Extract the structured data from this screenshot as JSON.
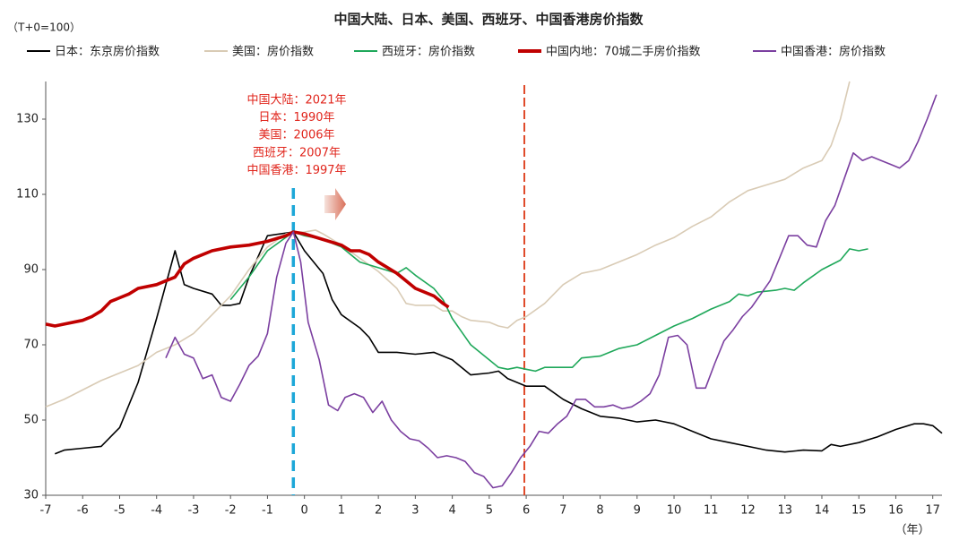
{
  "chart_data": {
    "type": "line",
    "title": "中国大陆、日本、美国、西班牙、中国香港房价指数",
    "y_label": "（T+0=100）",
    "x_label": "（年）",
    "annotation": [
      "中国大陆：2021年",
      "日本：1990年",
      "美国：2006年",
      "西班牙：2007年",
      "中国香港：1997年"
    ],
    "vlines": [
      {
        "x": -0.3,
        "color": "#1ca7d8"
      },
      {
        "x": 5.95,
        "color": "#e04a2a"
      }
    ],
    "xlim": [
      -7,
      17.25
    ],
    "xticks": [
      -7,
      -6,
      -5,
      -4,
      -3,
      -2,
      -1,
      0,
      1,
      2,
      3,
      4,
      5,
      6,
      7,
      8,
      9,
      10,
      11,
      12,
      13,
      14,
      15,
      16,
      17
    ],
    "ylim": [
      30,
      140
    ],
    "yticks": [
      30,
      50,
      70,
      90,
      110,
      130
    ],
    "grid": false,
    "legend": "top",
    "series": [
      {
        "name": "日本：东京房价指数",
        "color": "#000000",
        "width": 1.6,
        "x": [
          -6.75,
          -6.5,
          -6,
          -5.5,
          -5,
          -4.5,
          -4,
          -3.5,
          -3.25,
          -3,
          -2.5,
          -2.25,
          -2,
          -1.75,
          -1.5,
          -1,
          -0.3,
          0,
          0.5,
          0.75,
          1,
          1.5,
          1.75,
          2,
          2.5,
          3,
          3.5,
          4,
          4.5,
          5,
          5.25,
          5.5,
          6,
          6.5,
          7,
          7.5,
          8,
          8.5,
          9,
          9.5,
          10,
          10.5,
          11,
          11.5,
          12,
          12.5,
          13,
          13.5,
          14,
          14.25,
          14.5,
          15,
          15.5,
          16,
          16.5,
          16.75,
          17,
          17.25
        ],
        "values": [
          41,
          42,
          42.5,
          43,
          48,
          60,
          77,
          95,
          86,
          85,
          83.5,
          80.5,
          80.5,
          81,
          88,
          99,
          100,
          95,
          89,
          82,
          78,
          74.5,
          72,
          68,
          68,
          67.5,
          68,
          66,
          62,
          62.5,
          63,
          61,
          59,
          59,
          55.5,
          53,
          51,
          50.5,
          49.5,
          50,
          49,
          47,
          45,
          44,
          43,
          42,
          41.5,
          42,
          41.8,
          43.5,
          43,
          44,
          45.5,
          47.5,
          49,
          49,
          48.5,
          46.5
        ]
      },
      {
        "name": "美国：房价指数",
        "color": "#d9cbb5",
        "width": 1.6,
        "x": [
          -7,
          -6.5,
          -6,
          -5.5,
          -5,
          -4.5,
          -4,
          -3.5,
          -3,
          -2.5,
          -2,
          -1.5,
          -1,
          -0.5,
          -0.3,
          0,
          0.3,
          0.5,
          1,
          1.5,
          2,
          2.5,
          2.75,
          3,
          3.5,
          3.75,
          4,
          4.25,
          4.5,
          5,
          5.25,
          5.5,
          5.75,
          6,
          6.5,
          7,
          7.5,
          8,
          8.5,
          9,
          9.5,
          10,
          10.5,
          11,
          11.5,
          12,
          12.5,
          13,
          13.5,
          14,
          14.25,
          14.5,
          14.75
        ],
        "values": [
          53.5,
          55.5,
          58,
          60.5,
          62.5,
          64.5,
          68,
          70,
          73,
          78,
          83,
          90,
          96,
          99.5,
          100,
          100,
          100.5,
          99.5,
          96.5,
          93,
          89.5,
          85,
          81,
          80.5,
          80.5,
          79,
          79,
          77.5,
          76.5,
          76,
          75,
          74.5,
          76.5,
          77.5,
          81,
          86,
          89,
          90,
          92,
          94,
          96.5,
          98.5,
          101.5,
          104,
          108,
          111,
          112.5,
          114,
          117,
          119,
          123,
          130,
          140
        ]
      },
      {
        "name": "西班牙：房价指数",
        "color": "#1fa85a",
        "width": 1.6,
        "x": [
          -2,
          -1.5,
          -1,
          -0.3,
          0,
          0.5,
          1,
          1.5,
          2,
          2.5,
          2.75,
          3,
          3.5,
          3.75,
          4,
          4.25,
          4.5,
          5,
          5.25,
          5.5,
          5.75,
          6,
          6.25,
          6.5,
          7,
          7.25,
          7.5,
          8,
          8.5,
          9,
          9.5,
          10,
          10.5,
          11,
          11.5,
          11.75,
          12,
          12.25,
          12.75,
          13,
          13.25,
          13.5,
          14,
          14.5,
          14.75,
          15,
          15.25
        ],
        "values": [
          82,
          88,
          95,
          100,
          99,
          98,
          96,
          92,
          90.5,
          89,
          90.5,
          88.5,
          85,
          82,
          77,
          73.5,
          70,
          66,
          64,
          63.5,
          64,
          63.5,
          63,
          64,
          64,
          64,
          66.5,
          67,
          69,
          70,
          72.5,
          75,
          77,
          79.5,
          81.5,
          83.5,
          83,
          84,
          84.5,
          85,
          84.5,
          86.5,
          90,
          92.5,
          95.5,
          95,
          95.5
        ]
      },
      {
        "name": "中国内地：70城二手房价指数",
        "color": "#c00000",
        "width": 3.6,
        "x": [
          -7,
          -6.75,
          -6.5,
          -6,
          -5.75,
          -5.5,
          -5.25,
          -5,
          -4.75,
          -4.5,
          -4,
          -3.75,
          -3.5,
          -3.25,
          -3,
          -2.75,
          -2.5,
          -2,
          -1.5,
          -1,
          -0.5,
          -0.3,
          0,
          0.5,
          1,
          1.25,
          1.5,
          1.75,
          2,
          2.5,
          3,
          3.5,
          3.75,
          3.9
        ],
        "values": [
          75.5,
          75,
          75.5,
          76.5,
          77.5,
          79,
          81.5,
          82.5,
          83.5,
          85,
          86,
          87,
          88,
          91.5,
          93,
          94,
          95,
          96,
          96.5,
          97.5,
          99,
          100,
          99.5,
          98,
          96.5,
          95,
          95,
          94,
          92,
          89,
          85,
          83,
          81,
          80
        ]
      },
      {
        "name": "中国香港：房价指数",
        "color": "#7b3fa0",
        "width": 1.6,
        "x": [
          -3.75,
          -3.5,
          -3.25,
          -3,
          -2.75,
          -2.5,
          -2.25,
          -2,
          -1.75,
          -1.5,
          -1.25,
          -1,
          -0.75,
          -0.5,
          -0.3,
          -0.1,
          0.1,
          0.4,
          0.65,
          0.9,
          1.1,
          1.35,
          1.6,
          1.85,
          2.1,
          2.35,
          2.6,
          2.85,
          3.1,
          3.35,
          3.6,
          3.85,
          4.1,
          4.35,
          4.6,
          4.85,
          5.1,
          5.35,
          5.6,
          5.85,
          6.1,
          6.35,
          6.6,
          6.85,
          7.1,
          7.35,
          7.6,
          7.85,
          8.1,
          8.35,
          8.6,
          8.85,
          9.1,
          9.35,
          9.6,
          9.85,
          10.1,
          10.35,
          10.6,
          10.85,
          11.1,
          11.35,
          11.6,
          11.85,
          12.1,
          12.35,
          12.6,
          12.85,
          13.1,
          13.35,
          13.6,
          13.85,
          14.1,
          14.35,
          14.6,
          14.85,
          15.1,
          15.35,
          15.6,
          15.85,
          16.1,
          16.35,
          16.6,
          16.85,
          17.1
        ],
        "values": [
          66.5,
          72,
          67.5,
          66.5,
          61,
          62,
          56,
          55,
          59.5,
          64.5,
          67,
          73,
          88,
          97,
          100,
          92,
          76,
          66,
          54,
          52.5,
          56,
          57,
          56,
          52,
          55,
          50,
          47,
          45,
          44.5,
          42.5,
          40,
          40.5,
          40,
          39,
          36,
          35,
          32,
          32.5,
          36,
          40,
          43,
          47,
          46.5,
          49,
          51,
          55.5,
          55.5,
          53.5,
          53.5,
          54,
          53,
          53.5,
          55,
          57,
          62,
          72,
          72.5,
          70,
          58.5,
          58.5,
          65,
          71,
          74,
          77.5,
          80,
          83.5,
          87,
          93,
          99,
          99,
          96.5,
          96,
          103,
          107,
          114,
          121,
          119,
          120,
          119,
          118,
          117,
          119,
          124,
          130,
          136.5
        ]
      }
    ]
  }
}
